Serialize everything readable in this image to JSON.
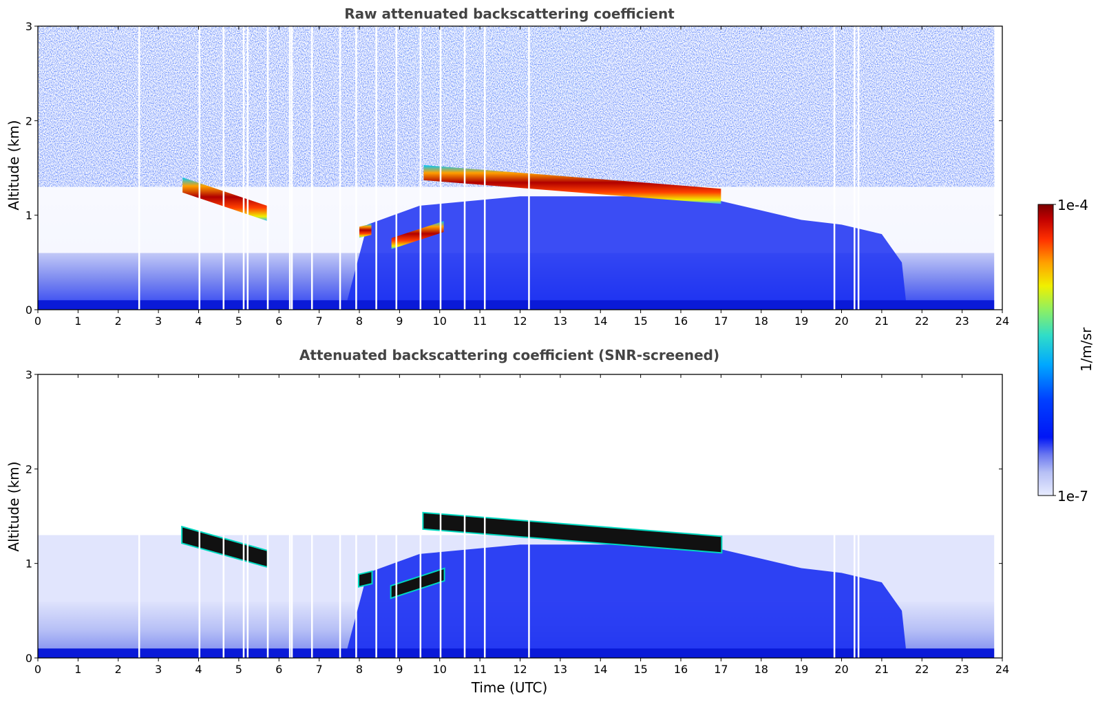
{
  "chart_data": [
    {
      "type": "heatmap",
      "title": "Raw attenuated backscattering coefficient",
      "xlabel": "",
      "ylabel": "Altitude (km)",
      "xlim": [
        0,
        24
      ],
      "ylim": [
        0,
        3
      ],
      "xticks": [
        "0",
        "1",
        "2",
        "3",
        "4",
        "5",
        "6",
        "7",
        "8",
        "9",
        "10",
        "11",
        "12",
        "13",
        "14",
        "15",
        "16",
        "17",
        "18",
        "19",
        "20",
        "21",
        "22",
        "23",
        "24"
      ],
      "yticks": [
        "0",
        "1",
        "2",
        "3"
      ],
      "grid": false,
      "cloud_layers": [
        {
          "time": [
            3.6,
            5.7
          ],
          "altitude_km": [
            1.32,
            1.02
          ]
        },
        {
          "time": [
            9.6,
            17.0
          ],
          "altitude_km": [
            1.45,
            1.2
          ]
        },
        {
          "time": [
            8.0,
            8.3
          ],
          "altitude_km": [
            0.82,
            0.85
          ]
        },
        {
          "time": [
            8.8,
            10.1
          ],
          "altitude_km": [
            0.7,
            0.88
          ]
        }
      ],
      "data_gaps_utc": [
        2.5,
        4.0,
        4.6,
        5.1,
        5.2,
        5.7,
        6.25,
        6.3,
        6.8,
        7.5,
        7.9,
        8.4,
        8.9,
        9.5,
        10.0,
        10.6,
        11.1,
        12.2,
        19.8,
        20.3,
        20.4
      ]
    },
    {
      "type": "heatmap",
      "title": "Attenuated backscattering coefficient (SNR-screened)",
      "xlabel": "Time (UTC)",
      "ylabel": "Altitude (km)",
      "xlim": [
        0,
        24
      ],
      "ylim": [
        0,
        3
      ],
      "xticks": [
        "0",
        "1",
        "2",
        "3",
        "4",
        "5",
        "6",
        "7",
        "8",
        "9",
        "10",
        "11",
        "12",
        "13",
        "14",
        "15",
        "16",
        "17",
        "18",
        "19",
        "20",
        "21",
        "22",
        "23",
        "24"
      ],
      "yticks": [
        "0",
        "1",
        "2",
        "3"
      ],
      "grid": false,
      "cloud_layers": [
        {
          "time": [
            3.6,
            5.7
          ],
          "altitude_km": [
            1.3,
            1.05
          ]
        },
        {
          "time": [
            9.6,
            17.0
          ],
          "altitude_km": [
            1.45,
            1.2
          ]
        },
        {
          "time": [
            8.0,
            8.3
          ],
          "altitude_km": [
            0.82,
            0.85
          ]
        },
        {
          "time": [
            8.8,
            10.1
          ],
          "altitude_km": [
            0.7,
            0.88
          ]
        }
      ]
    }
  ],
  "colorbar": {
    "label": "1/m/sr",
    "max_label": "1e-4",
    "min_label": "1e-7",
    "scale": "log",
    "colors": [
      "#dde3ff",
      "#b6bff5",
      "#8a95f0",
      "#4a5cf0",
      "#0016f5",
      "#0050ff",
      "#00a8ff",
      "#30ddc8",
      "#90f060",
      "#f0f000",
      "#ffa000",
      "#ff3000",
      "#c00000",
      "#800000"
    ]
  }
}
